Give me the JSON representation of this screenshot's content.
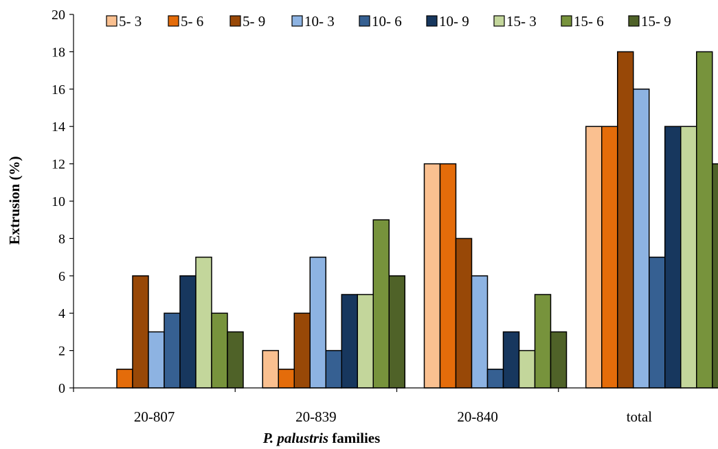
{
  "chart_data": {
    "type": "bar",
    "categories": [
      "20-807",
      "20-839",
      "20-840",
      "total"
    ],
    "series": [
      {
        "name": "5- 3",
        "color": "#FAC090",
        "values": [
          0,
          2,
          12,
          14
        ]
      },
      {
        "name": "5- 6",
        "color": "#E46C0A",
        "values": [
          1,
          1,
          12,
          14
        ]
      },
      {
        "name": "5- 9",
        "color": "#984807",
        "values": [
          6,
          4,
          8,
          18
        ]
      },
      {
        "name": "10- 3",
        "color": "#8DB3E2",
        "values": [
          3,
          7,
          6,
          16
        ]
      },
      {
        "name": "10- 6",
        "color": "#366092",
        "values": [
          4,
          2,
          1,
          7
        ]
      },
      {
        "name": "10- 9",
        "color": "#17375E",
        "values": [
          6,
          5,
          3,
          14
        ]
      },
      {
        "name": "15- 3",
        "color": "#C3D69B",
        "values": [
          7,
          5,
          2,
          14
        ]
      },
      {
        "name": "15- 6",
        "color": "#77933C",
        "values": [
          4,
          9,
          5,
          18
        ]
      },
      {
        "name": "15- 9",
        "color": "#4F6228",
        "values": [
          3,
          6,
          3,
          12
        ]
      }
    ],
    "ylim": [
      0,
      20
    ],
    "yticks": [
      0,
      2,
      4,
      6,
      8,
      10,
      12,
      14,
      16,
      18,
      20
    ],
    "ylabel": "Extrusion  (%)",
    "xlabel": {
      "italic_part": "P. palustris",
      "rest": " families"
    },
    "legend_position": "top",
    "grid": false
  }
}
